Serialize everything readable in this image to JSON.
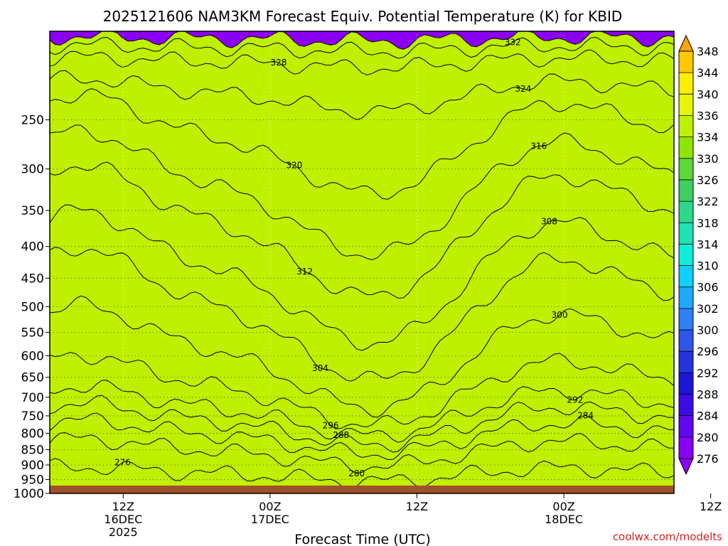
{
  "chart_data": {
    "type": "heatmap",
    "title": "2025121606 NAM3KM Forecast Equiv. Potential Temperature (K) for KBID",
    "xlabel": "Forecast Time (UTC)",
    "ylabel": "",
    "y_scale": "log",
    "y_reversed": true,
    "y_range": [
      180,
      1000
    ],
    "x_range_hours": [
      0,
      51
    ],
    "y_ticks": [
      250,
      300,
      350,
      400,
      450,
      500,
      550,
      600,
      650,
      700,
      750,
      800,
      850,
      900,
      950,
      1000
    ],
    "x_ticks": [
      {
        "hour": 6,
        "line1": "12Z",
        "line2": "16DEC",
        "line3": "2025"
      },
      {
        "hour": 18,
        "line1": "00Z",
        "line2": "17DEC",
        "line3": ""
      },
      {
        "hour": 30,
        "line1": "12Z",
        "line2": "",
        "line3": ""
      },
      {
        "hour": 42,
        "line1": "00Z",
        "line2": "18DEC",
        "line3": ""
      },
      {
        "hour": 54,
        "line1": "12Z",
        "line2": "",
        "line3": ""
      }
    ],
    "grid": true,
    "legend": {
      "placement": "right",
      "labels": [
        "348",
        "344",
        "340",
        "336",
        "334",
        "330",
        "326",
        "322",
        "318",
        "314",
        "310",
        "306",
        "302",
        "300",
        "296",
        "292",
        "288",
        "284",
        "280",
        "276"
      ],
      "colors": [
        "#ffa500",
        "#ffc800",
        "#ffee00",
        "#e6f500",
        "#bef000",
        "#8ee600",
        "#5cd838",
        "#3cd060",
        "#2ed88a",
        "#1ee2b2",
        "#10ecd8",
        "#10d0ff",
        "#20a8ff",
        "#2f7ff5",
        "#2f55ea",
        "#2433e0",
        "#1c16d6",
        "#3d0ce4",
        "#6208ee",
        "#8b00f4"
      ]
    },
    "contours": [
      {
        "level": 276,
        "label": "276",
        "base": 0.955,
        "amp": 0.035,
        "color": "#8b00f4"
      },
      {
        "level": 280,
        "label": "280",
        "base": 0.905,
        "amp": 0.065,
        "color": "#6208ee"
      },
      {
        "level": 284,
        "label": "284",
        "base": 0.87,
        "amp": 0.08,
        "color": "#3d0ce4"
      },
      {
        "level": 288,
        "label": "288",
        "base": 0.84,
        "amp": 0.1,
        "color": "#1c16d6"
      },
      {
        "level": 292,
        "label": "292",
        "base": 0.81,
        "amp": 0.12,
        "color": "#2433e0"
      },
      {
        "level": 296,
        "label": "296",
        "base": 0.76,
        "amp": 0.17,
        "color": "#2f55ea"
      },
      {
        "level": 300,
        "label": "300",
        "base": 0.68,
        "amp": 0.25,
        "color": "#2f7ff5"
      },
      {
        "level": 304,
        "label": "304",
        "base": 0.58,
        "amp": 0.32,
        "color": "#20a8ff"
      },
      {
        "level": 308,
        "label": "308",
        "base": 0.5,
        "amp": 0.32,
        "color": "#10d0ff"
      },
      {
        "level": 312,
        "label": "312",
        "base": 0.4,
        "amp": 0.32,
        "color": "#10ecd8"
      },
      {
        "level": 316,
        "label": "316",
        "base": 0.32,
        "amp": 0.3,
        "color": "#1ee2b2"
      },
      {
        "level": 320,
        "label": "320",
        "base": 0.22,
        "amp": 0.24,
        "color": "#2ed88a"
      },
      {
        "level": 324,
        "label": "324",
        "base": 0.13,
        "amp": 0.08,
        "color": "#3cd060"
      },
      {
        "level": 328,
        "label": "328",
        "base": 0.065,
        "amp": 0.025,
        "color": "#5cd838"
      },
      {
        "level": 332,
        "label": "332",
        "base": 0.035,
        "amp": 0.015,
        "color": "#8ee600"
      },
      {
        "level": 336,
        "label": "",
        "base": 0.015,
        "amp": 0.01,
        "color": "#bef000"
      }
    ],
    "terrain_color": "#a0522d"
  },
  "credit": "coolwx.com/modelts"
}
